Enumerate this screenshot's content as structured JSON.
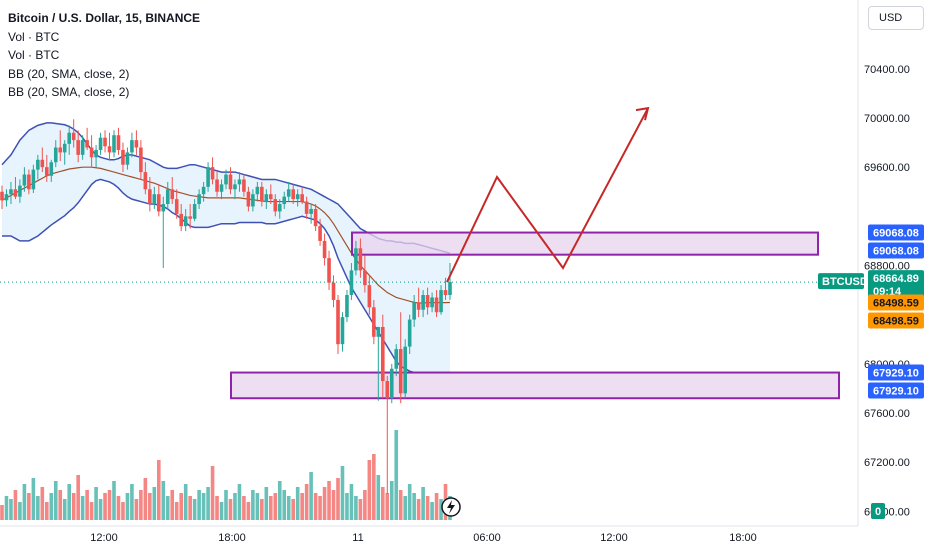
{
  "legend": {
    "title": "Bitcoin / U.S. Dollar, 15, BINANCE",
    "line2": "Vol · BTC",
    "line3": "Vol · BTC",
    "line4": "BB (20, SMA, close, 2)",
    "line5": "BB (20, SMA, close, 2)"
  },
  "currency_button": "USD",
  "colors": {
    "up": "#26a69a",
    "down": "#ef5350",
    "band_line": "#3f51b5",
    "band_fill": "#e3f2fd",
    "basis": "#a0522d",
    "zone_fill": "#e8d3ee",
    "zone_border": "#8e24aa",
    "projection": "#c62828",
    "blue_tag": "#2962ff",
    "orange_tag": "#ff9800",
    "price_tag": "#089981"
  },
  "chart_data": {
    "type": "candlestick",
    "symbol": "BTCUSD",
    "timeframe": "15",
    "ylim": [
      66800,
      70800
    ],
    "y_ticks": [
      "70400.00",
      "70000.00",
      "69600.00",
      "68800.00",
      "68000.00",
      "67600.00",
      "67200.00",
      "66800.00"
    ],
    "x_ticks": [
      "12:00",
      "18:00",
      "11",
      "06:00",
      "12:00",
      "18:00"
    ],
    "candles": [
      [
        69400,
        69450,
        69260,
        69330
      ],
      [
        69330,
        69420,
        69280,
        69380
      ],
      [
        69380,
        69480,
        69300,
        69420
      ],
      [
        69420,
        69520,
        69340,
        69360
      ],
      [
        69360,
        69500,
        69310,
        69450
      ],
      [
        69450,
        69600,
        69400,
        69540
      ],
      [
        69540,
        69580,
        69380,
        69420
      ],
      [
        69420,
        69620,
        69390,
        69580
      ],
      [
        69580,
        69700,
        69500,
        69660
      ],
      [
        69660,
        69760,
        69560,
        69600
      ],
      [
        69600,
        69700,
        69480,
        69530
      ],
      [
        69530,
        69660,
        69480,
        69640
      ],
      [
        69640,
        69820,
        69600,
        69760
      ],
      [
        69760,
        69900,
        69650,
        69720
      ],
      [
        69720,
        69820,
        69620,
        69790
      ],
      [
        69790,
        69940,
        69700,
        69880
      ],
      [
        69880,
        69990,
        69760,
        69820
      ],
      [
        69820,
        69900,
        69640,
        69700
      ],
      [
        69700,
        69860,
        69660,
        69820
      ],
      [
        69820,
        69920,
        69740,
        69760
      ],
      [
        69760,
        69860,
        69600,
        69680
      ],
      [
        69680,
        69780,
        69600,
        69740
      ],
      [
        69740,
        69880,
        69700,
        69840
      ],
      [
        69840,
        69900,
        69720,
        69770
      ],
      [
        69770,
        69880,
        69660,
        69720
      ],
      [
        69720,
        69900,
        69680,
        69860
      ],
      [
        69860,
        69920,
        69700,
        69740
      ],
      [
        69740,
        69800,
        69560,
        69620
      ],
      [
        69620,
        69760,
        69580,
        69720
      ],
      [
        69720,
        69880,
        69680,
        69820
      ],
      [
        69820,
        69900,
        69700,
        69760
      ],
      [
        69760,
        69820,
        69500,
        69560
      ],
      [
        69560,
        69640,
        69380,
        69420
      ],
      [
        69420,
        69520,
        69240,
        69300
      ],
      [
        69300,
        69440,
        69260,
        69380
      ],
      [
        69380,
        69460,
        69200,
        69240
      ],
      [
        69240,
        69360,
        68780,
        69300
      ],
      [
        69300,
        69480,
        69260,
        69420
      ],
      [
        69420,
        69520,
        69300,
        69340
      ],
      [
        69340,
        69420,
        69180,
        69220
      ],
      [
        69220,
        69300,
        69080,
        69120
      ],
      [
        69120,
        69260,
        69080,
        69200
      ],
      [
        69200,
        69300,
        69100,
        69180
      ],
      [
        69180,
        69340,
        69160,
        69300
      ],
      [
        69300,
        69420,
        69260,
        69380
      ],
      [
        69380,
        69480,
        69320,
        69440
      ],
      [
        69440,
        69640,
        69400,
        69600
      ],
      [
        69600,
        69680,
        69460,
        69500
      ],
      [
        69500,
        69560,
        69360,
        69400
      ],
      [
        69400,
        69500,
        69340,
        69460
      ],
      [
        69460,
        69580,
        69420,
        69540
      ],
      [
        69540,
        69600,
        69380,
        69420
      ],
      [
        69420,
        69500,
        69340,
        69460
      ],
      [
        69460,
        69560,
        69400,
        69500
      ],
      [
        69500,
        69540,
        69360,
        69400
      ],
      [
        69400,
        69440,
        69240,
        69280
      ],
      [
        69280,
        69420,
        69240,
        69380
      ],
      [
        69380,
        69480,
        69320,
        69440
      ],
      [
        69440,
        69480,
        69280,
        69320
      ],
      [
        69320,
        69420,
        69260,
        69380
      ],
      [
        69380,
        69460,
        69300,
        69340
      ],
      [
        69340,
        69380,
        69200,
        69240
      ],
      [
        69240,
        69340,
        69180,
        69300
      ],
      [
        69300,
        69400,
        69260,
        69360
      ],
      [
        69360,
        69480,
        69320,
        69420
      ],
      [
        69420,
        69460,
        69300,
        69340
      ],
      [
        69340,
        69420,
        69280,
        69380
      ],
      [
        69380,
        69440,
        69300,
        69320
      ],
      [
        69320,
        69360,
        69180,
        69220
      ],
      [
        69220,
        69300,
        69140,
        69260
      ],
      [
        69260,
        69300,
        69080,
        69120
      ],
      [
        69120,
        69180,
        68960,
        69000
      ],
      [
        69000,
        69060,
        68800,
        68860
      ],
      [
        68860,
        68920,
        68600,
        68660
      ],
      [
        68660,
        68720,
        68460,
        68520
      ],
      [
        68520,
        68560,
        68080,
        68160
      ],
      [
        68160,
        68420,
        68100,
        68380
      ],
      [
        68380,
        68600,
        68340,
        68560
      ],
      [
        68560,
        68820,
        68520,
        68760
      ],
      [
        68760,
        69000,
        68720,
        68940
      ],
      [
        68940,
        69020,
        68700,
        68760
      ],
      [
        68760,
        68880,
        68580,
        68640
      ],
      [
        68640,
        68720,
        68400,
        68460
      ],
      [
        68460,
        68520,
        68160,
        68220
      ],
      [
        68220,
        68300,
        67700,
        68300
      ],
      [
        68300,
        68400,
        67720,
        67860
      ],
      [
        67860,
        67900,
        66940,
        67720
      ],
      [
        67720,
        68000,
        67680,
        67960
      ],
      [
        67960,
        68160,
        67900,
        68120
      ],
      [
        68120,
        68420,
        67680,
        67760
      ],
      [
        67760,
        68200,
        67720,
        68140
      ],
      [
        68140,
        68400,
        68080,
        68360
      ],
      [
        68360,
        68560,
        68300,
        68500
      ],
      [
        68500,
        68620,
        68380,
        68440
      ],
      [
        68440,
        68600,
        68380,
        68560
      ],
      [
        68560,
        68620,
        68400,
        68460
      ],
      [
        68460,
        68580,
        68420,
        68540
      ],
      [
        68540,
        68600,
        68380,
        68420
      ],
      [
        68420,
        68640,
        68400,
        68600
      ],
      [
        68600,
        68700,
        68520,
        68560
      ],
      [
        68560,
        68820,
        68520,
        68665
      ]
    ],
    "volume": [
      5,
      8,
      7,
      10,
      6,
      12,
      9,
      14,
      8,
      11,
      6,
      9,
      13,
      10,
      7,
      12,
      9,
      15,
      8,
      10,
      6,
      11,
      7,
      9,
      10,
      13,
      8,
      6,
      9,
      12,
      7,
      10,
      14,
      9,
      11,
      20,
      13,
      8,
      10,
      6,
      9,
      12,
      8,
      7,
      10,
      9,
      11,
      18,
      8,
      6,
      10,
      7,
      9,
      12,
      8,
      6,
      10,
      9,
      7,
      11,
      8,
      9,
      13,
      10,
      8,
      7,
      11,
      9,
      12,
      16,
      9,
      8,
      11,
      13,
      10,
      14,
      18,
      9,
      12,
      8,
      7,
      10,
      20,
      22,
      15,
      11,
      9,
      13,
      30,
      10,
      8,
      12,
      9,
      7,
      11,
      8,
      6,
      9,
      7,
      12,
      8
    ],
    "bb_upper": [
      69620,
      69660,
      69700,
      69760,
      69820,
      69860,
      69900,
      69920,
      69940,
      69950,
      69960,
      69960,
      69955,
      69950,
      69945,
      69930,
      69910,
      69880,
      69840,
      69790,
      69740,
      69700,
      69680,
      69670,
      69660,
      69660,
      69670,
      69690,
      69700,
      69700,
      69690,
      69680,
      69670,
      69660,
      69640,
      69620,
      69600,
      69590,
      69590,
      69590,
      69600,
      69610,
      69620,
      69620,
      69610,
      69600,
      69590,
      69580,
      69570,
      69560,
      69560,
      69560,
      69560,
      69550,
      69540,
      69530,
      69520,
      69510,
      69500,
      69500,
      69500,
      69500,
      69490,
      69480,
      69470,
      69460,
      69450,
      69440,
      69430,
      69420,
      69400,
      69380,
      69360,
      69340,
      69320,
      69300,
      69260,
      69220,
      69180,
      69140,
      69100,
      69080,
      69060,
      69040,
      69020,
      69010,
      69000,
      69000,
      68990,
      68990,
      68980,
      68980,
      68980,
      68970,
      68960,
      68950,
      68940,
      68930,
      68920,
      68910,
      68900
    ],
    "bb_basis": [
      69330,
      69350,
      69370,
      69390,
      69410,
      69430,
      69450,
      69470,
      69490,
      69510,
      69530,
      69545,
      69555,
      69565,
      69575,
      69585,
      69590,
      69595,
      69600,
      69600,
      69600,
      69595,
      69590,
      69580,
      69570,
      69560,
      69550,
      69540,
      69530,
      69520,
      69510,
      69500,
      69490,
      69480,
      69470,
      69455,
      69440,
      69425,
      69410,
      69400,
      69390,
      69380,
      69370,
      69365,
      69360,
      69355,
      69350,
      69350,
      69350,
      69350,
      69350,
      69350,
      69350,
      69350,
      69345,
      69340,
      69335,
      69330,
      69325,
      69320,
      69320,
      69320,
      69320,
      69320,
      69320,
      69320,
      69320,
      69320,
      69310,
      69300,
      69285,
      69260,
      69230,
      69190,
      69140,
      69080,
      69020,
      68960,
      68900,
      68850,
      68800,
      68760,
      68720,
      68680,
      68640,
      68610,
      68580,
      68560,
      68540,
      68530,
      68520,
      68510,
      68500,
      68495,
      68495,
      68498,
      68498,
      68498,
      68498,
      68498,
      68499
    ],
    "bb_lower": [
      69040,
      69040,
      69040,
      69020,
      69000,
      69000,
      69000,
      69020,
      69040,
      69070,
      69100,
      69130,
      69155,
      69180,
      69205,
      69240,
      69270,
      69310,
      69360,
      69410,
      69460,
      69490,
      69500,
      69490,
      69480,
      69460,
      69430,
      69390,
      69360,
      69340,
      69330,
      69320,
      69310,
      69300,
      69300,
      69290,
      69280,
      69260,
      69230,
      69210,
      69180,
      69150,
      69120,
      69110,
      69110,
      69110,
      69110,
      69120,
      69130,
      69140,
      69140,
      69140,
      69140,
      69150,
      69150,
      69150,
      69150,
      69150,
      69150,
      69140,
      69140,
      69140,
      69150,
      69160,
      69170,
      69180,
      69190,
      69200,
      69190,
      69180,
      69170,
      69140,
      69100,
      69040,
      68960,
      68860,
      68780,
      68700,
      68620,
      68560,
      68500,
      68440,
      68380,
      68320,
      68260,
      68200,
      68140,
      68080,
      68020,
      67980,
      67960,
      67940,
      67930,
      67930,
      67929,
      67929,
      67929,
      67929,
      67929,
      67929,
      67929
    ],
    "zones": [
      {
        "name": "resistance-zone",
        "top": 69068.08,
        "bottom": 68888
      },
      {
        "name": "support-zone",
        "top": 67929.1,
        "bottom": 67720
      }
    ],
    "projection_path": [
      [
        68665,
        0
      ],
      [
        69520,
        1
      ],
      [
        68780,
        2
      ],
      [
        70080,
        3
      ]
    ],
    "price_tags": [
      {
        "label": "69068.08",
        "value": 69068.08,
        "color": "blue"
      },
      {
        "label": "69068.08",
        "value": 69068.08,
        "color": "blue"
      },
      {
        "label": "68664.89",
        "value": 68664.89,
        "color": "green",
        "countdown": "09:14",
        "symbol_tag": "BTCUSD"
      },
      {
        "label": "68498.59",
        "value": 68498.59,
        "color": "orange"
      },
      {
        "label": "68498.59",
        "value": 68498.59,
        "color": "orange"
      },
      {
        "label": "67929.10",
        "value": 67929.1,
        "color": "blue"
      },
      {
        "label": "67929.10",
        "value": 67929.1,
        "color": "blue"
      }
    ],
    "volume_axis_label": "0"
  }
}
